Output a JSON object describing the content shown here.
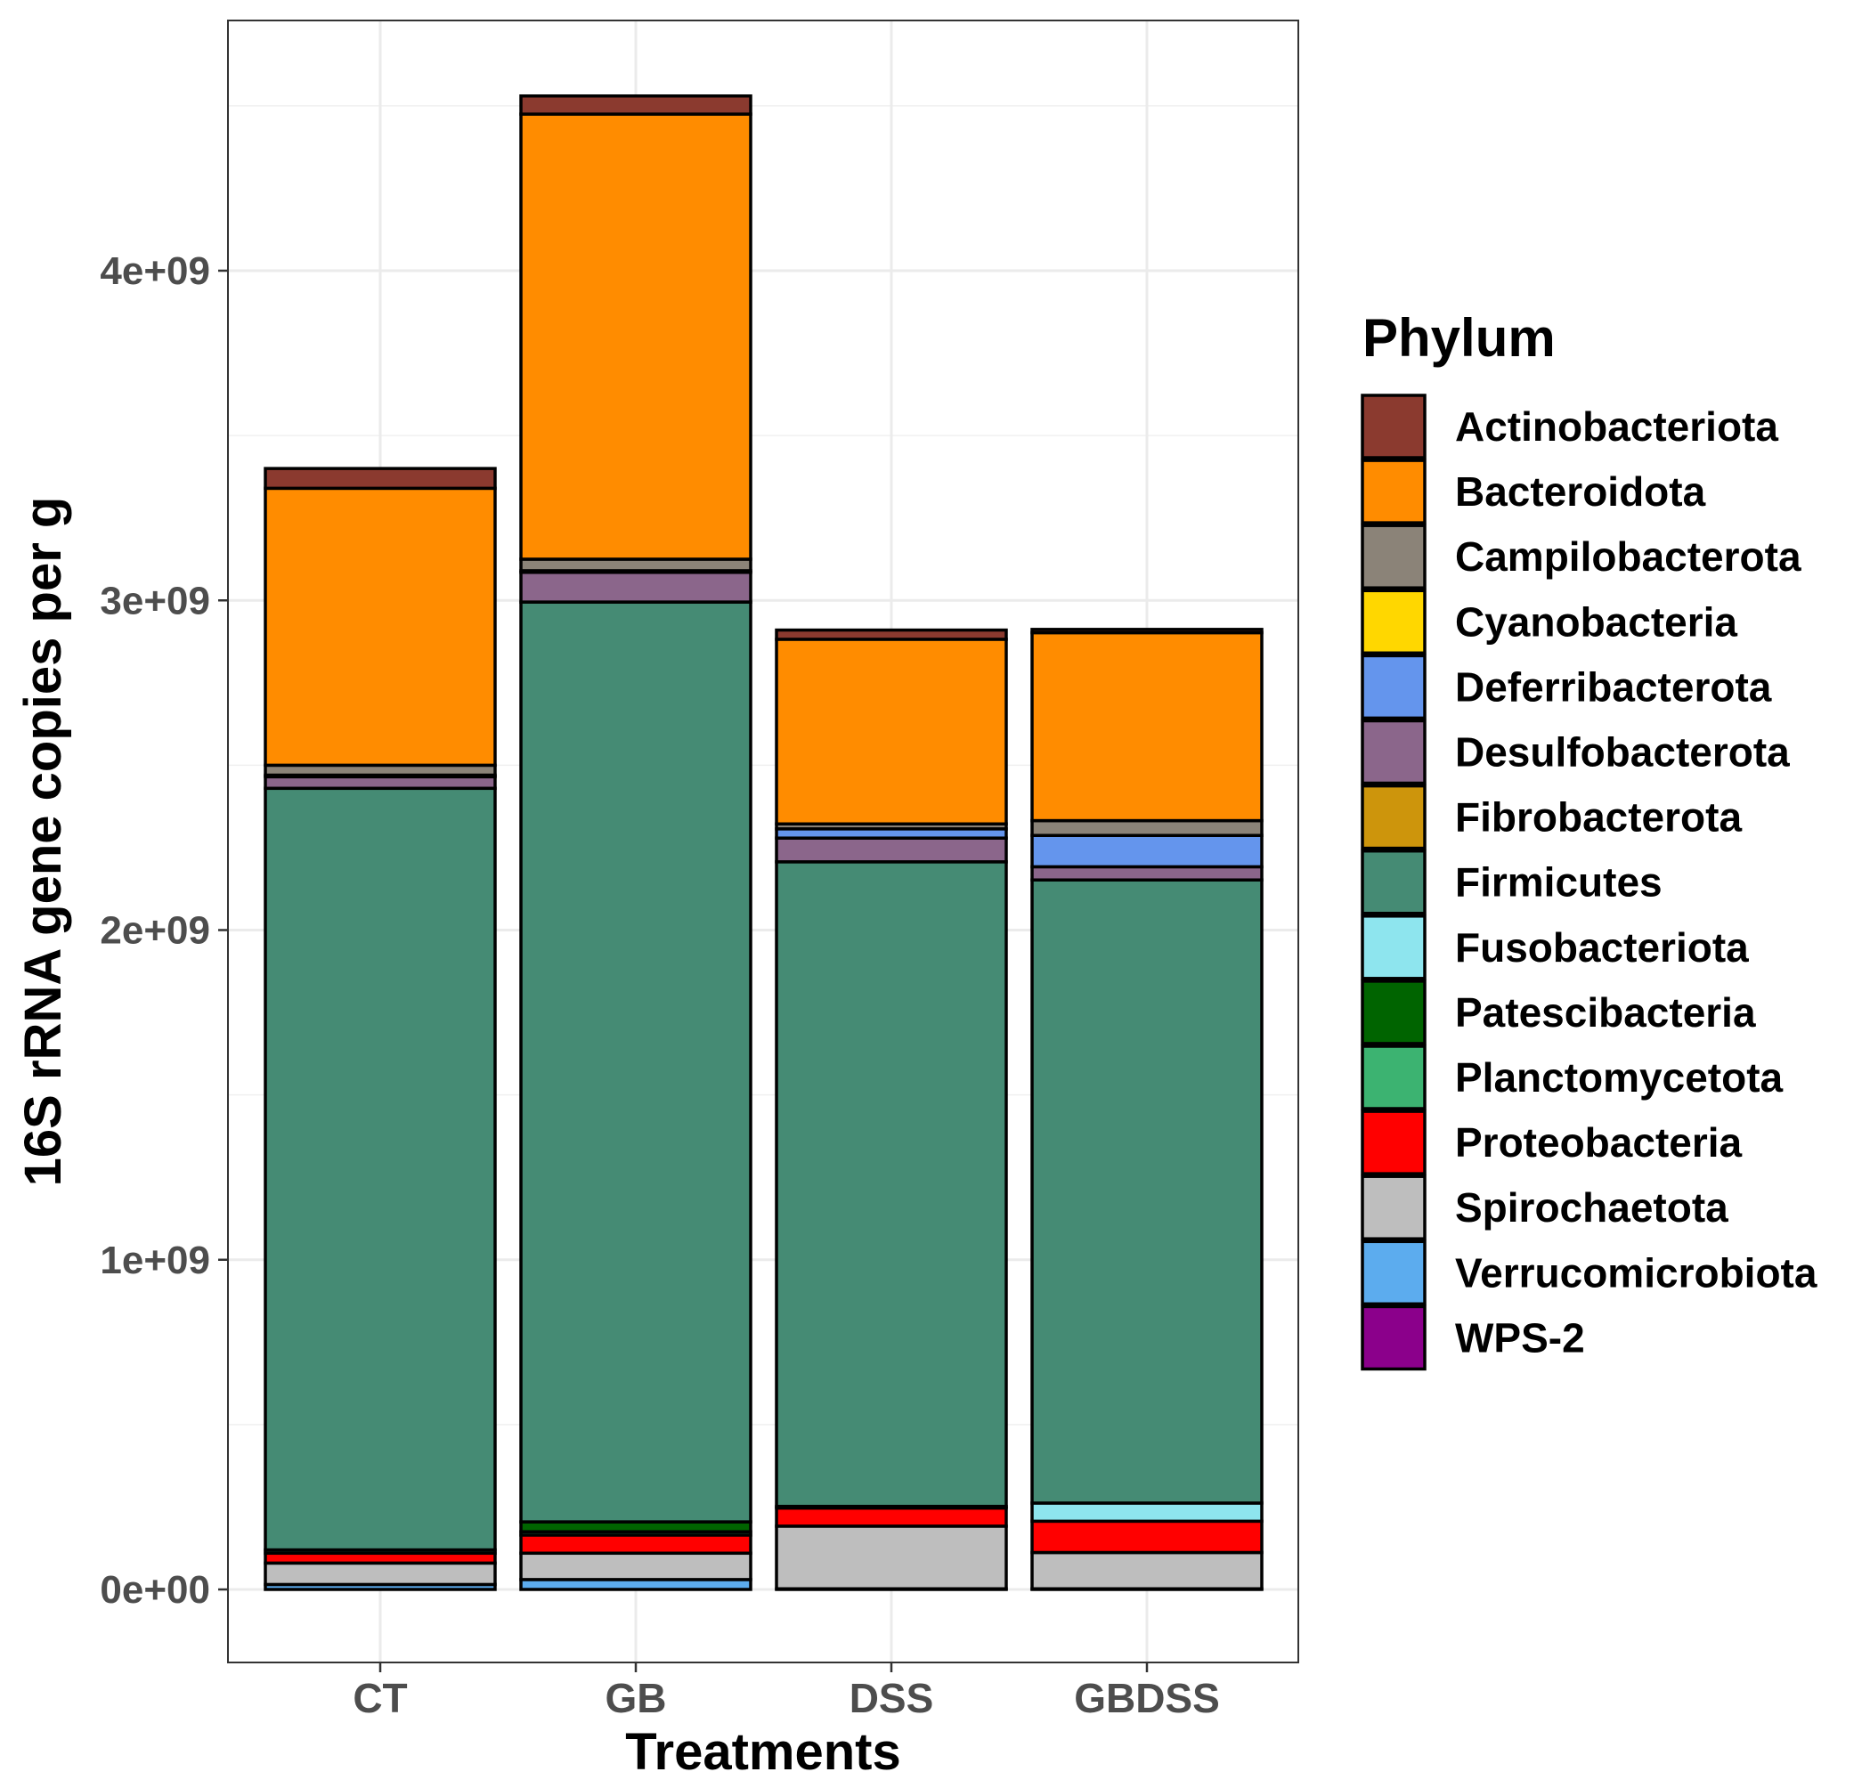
{
  "chart_data": {
    "type": "bar",
    "stacked": true,
    "categories": [
      "CT",
      "GB",
      "DSS",
      "GBDSS"
    ],
    "xlabel": "Treatments",
    "ylabel": "16S rRNA gene copies per g",
    "ylim": [
      -225000000,
      4750000000
    ],
    "yticks": [
      0,
      1000000000,
      2000000000,
      3000000000,
      4000000000
    ],
    "ytick_labels": [
      "0e+00",
      "1e+09",
      "2e+09",
      "3e+09",
      "4e+09"
    ],
    "grid": true,
    "legend": {
      "title": "Phylum",
      "position": "right"
    },
    "series": [
      {
        "name": "Actinobacteriota",
        "color": "#8B3A2F",
        "values": [
          60000000,
          55000000,
          28000000,
          10000000
        ]
      },
      {
        "name": "Bacteroidota",
        "color": "#FF8C00",
        "values": [
          840000000,
          1350000000,
          560000000,
          570000000
        ]
      },
      {
        "name": "Campilobacterota",
        "color": "#8B8378",
        "values": [
          30000000,
          35000000,
          15000000,
          45000000
        ]
      },
      {
        "name": "Cyanobacteria",
        "color": "#FFD700",
        "values": [
          0,
          0,
          0,
          0
        ]
      },
      {
        "name": "Deferribacterota",
        "color": "#6495ED",
        "values": [
          5000000,
          5000000,
          28000000,
          95000000
        ]
      },
      {
        "name": "Desulfobacterota",
        "color": "#8B668B",
        "values": [
          35000000,
          90000000,
          72000000,
          40000000
        ]
      },
      {
        "name": "Fibrobacterota",
        "color": "#CD950C",
        "values": [
          0,
          0,
          0,
          0
        ]
      },
      {
        "name": "Firmicutes",
        "color": "#458B74",
        "values": [
          2310000000,
          2790000000,
          1955000000,
          1890000000
        ]
      },
      {
        "name": "Fusobacteriota",
        "color": "#8EE5EE",
        "values": [
          0,
          0,
          5000000,
          55000000
        ]
      },
      {
        "name": "Patescibacteria",
        "color": "#006400",
        "values": [
          0,
          30000000,
          0,
          0
        ]
      },
      {
        "name": "Planctomycetota",
        "color": "#3CB371",
        "values": [
          10000000,
          10000000,
          0,
          0
        ]
      },
      {
        "name": "Proteobacteria",
        "color": "#FF0000",
        "values": [
          30000000,
          55000000,
          55000000,
          95000000
        ]
      },
      {
        "name": "Spirochaetota",
        "color": "#BEBEBE",
        "values": [
          65000000,
          80000000,
          190000000,
          110000000
        ]
      },
      {
        "name": "Verrucomicrobiota",
        "color": "#5CACEE",
        "values": [
          15000000,
          30000000,
          2000000,
          2000000
        ]
      },
      {
        "name": "WPS-2",
        "color": "#8B008B",
        "values": [
          0,
          0,
          0,
          0
        ]
      }
    ]
  }
}
